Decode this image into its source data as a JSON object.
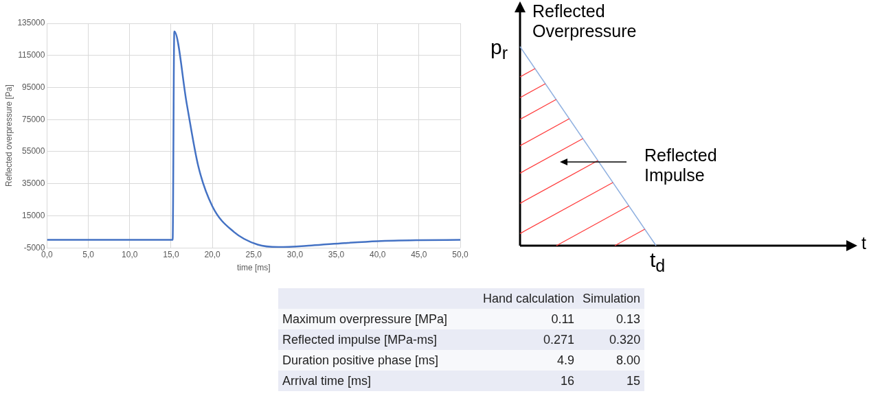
{
  "chart_data": [
    {
      "type": "line",
      "xlabel": "time [ms]",
      "ylabel": "Reflected overpressure [Pa]",
      "x": [
        0,
        15.2,
        15.4,
        16.9,
        18.3,
        20.0,
        22.6,
        25.5,
        28,
        32,
        36,
        40,
        45,
        50
      ],
      "values": [
        0,
        0,
        130000,
        85000,
        46000,
        21000,
        5000,
        -3000,
        -4500,
        -3500,
        -2000,
        -800,
        -200,
        0
      ],
      "color": "#4472c4",
      "xlim": [
        0,
        50
      ],
      "xticks": [
        {
          "value": 0,
          "label": "0,0"
        },
        {
          "value": 5,
          "label": "5,0"
        },
        {
          "value": 10,
          "label": "10,0"
        },
        {
          "value": 15,
          "label": "15,0"
        },
        {
          "value": 20,
          "label": "20,0"
        },
        {
          "value": 25,
          "label": "25,0"
        },
        {
          "value": 30,
          "label": "30,0"
        },
        {
          "value": 35,
          "label": "35,0"
        },
        {
          "value": 40,
          "label": "40,0"
        },
        {
          "value": 45,
          "label": "45,0"
        },
        {
          "value": 50,
          "label": "50,0"
        }
      ],
      "ylim": [
        -5000,
        135000
      ],
      "yticks": [
        -5000,
        15000,
        35000,
        55000,
        75000,
        95000,
        115000,
        135000
      ],
      "grid": true,
      "legend": false,
      "marker": "none",
      "line_style": "solid"
    },
    {
      "type": "other",
      "xlabel": "t",
      "ylabel": "Reflected Overpressure",
      "annotations": [
        "p$_{r}$",
        "t$_{d}$",
        "Reflected Impulse"
      ]
    },
    {
      "type": "other",
      "categories": [
        "Maximum overpressure [MPa]",
        "Reflected impulse [MPa-ms]",
        "Duration positive phase [ms]",
        "Arrival time [ms]"
      ],
      "series": [
        {
          "name": "Hand calculation",
          "colors": [
            "#f7f8fb",
            "#e9ebf5",
            "#f7f8fb",
            "#e9ebf5"
          ],
          "values": [
            0.11,
            0.271,
            4.9,
            16
          ],
          "value_labels": [
            "0.11",
            "0.271",
            "4.9",
            "16"
          ]
        },
        {
          "name": "Simulation",
          "colors": [
            "#f7f8fb",
            "#e9ebf5",
            "#f7f8fb",
            "#e9ebf5"
          ],
          "values": [
            0.13,
            0.32,
            8,
            15
          ],
          "value_labels": [
            "0.13",
            "0.320",
            "8.00",
            "15"
          ]
        }
      ]
    }
  ]
}
